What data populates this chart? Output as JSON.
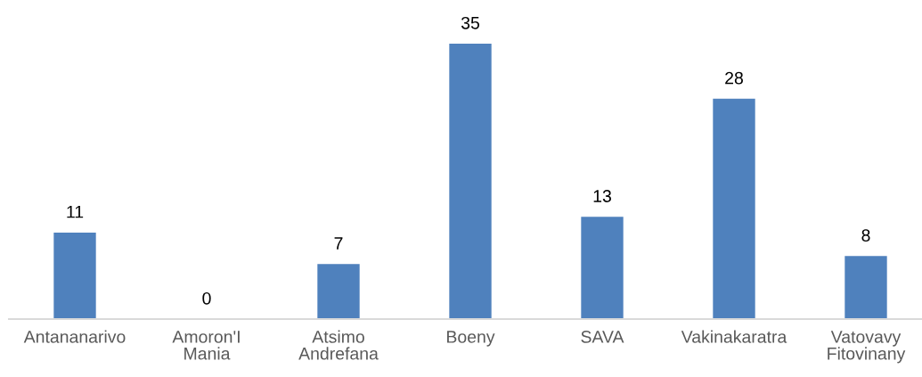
{
  "chart_data": {
    "type": "bar",
    "categories": [
      "Antananarivo",
      "Amoron'I\nMania",
      "Atsimo\nAndrefana",
      "Boeny",
      "SAVA",
      "Vakinakaratra",
      "Vatovavy\nFitovinany"
    ],
    "values": [
      11,
      0,
      7,
      35,
      13,
      28,
      8
    ],
    "color": "#4f81bd",
    "data_labels": true,
    "tick_labels": "x"
  }
}
